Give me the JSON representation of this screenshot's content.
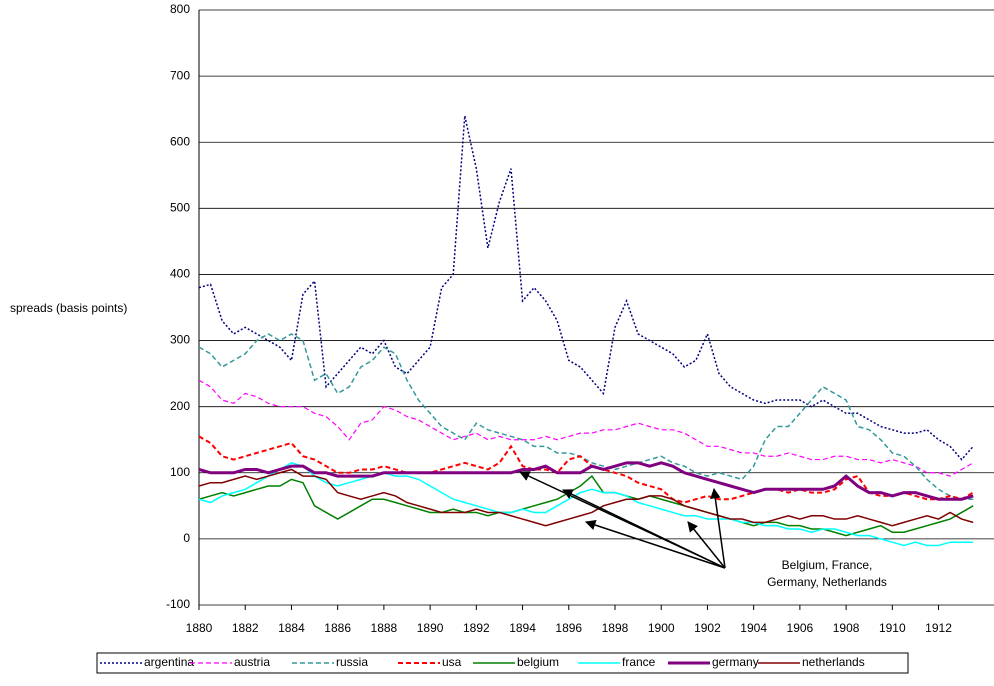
{
  "chart_data": {
    "type": "line",
    "y_label": "spreads (basis points)",
    "annotation": [
      "Belgium, France,",
      "Germany, Netherlands"
    ],
    "xlim": [
      1880,
      1914.4
    ],
    "xticks": [
      1880,
      1882,
      1884,
      1886,
      1888,
      1890,
      1892,
      1894,
      1896,
      1898,
      1900,
      1902,
      1904,
      1906,
      1908,
      1910,
      1912
    ],
    "ylim": [
      -100,
      800
    ],
    "yticks": [
      -100,
      0,
      100,
      200,
      300,
      400,
      500,
      600,
      700,
      800
    ],
    "grid": true,
    "legend": "bottom",
    "x": [
      1880,
      1880.5,
      1881,
      1881.5,
      1882,
      1882.5,
      1883,
      1883.5,
      1884,
      1884.5,
      1885,
      1885.5,
      1886,
      1886.5,
      1887,
      1887.5,
      1888,
      1888.5,
      1889,
      1889.5,
      1890,
      1890.5,
      1891,
      1891.5,
      1892,
      1892.5,
      1893,
      1893.5,
      1894,
      1894.5,
      1895,
      1895.5,
      1896,
      1896.5,
      1897,
      1897.5,
      1898,
      1898.5,
      1899,
      1899.5,
      1900,
      1900.5,
      1901,
      1901.5,
      1902,
      1902.5,
      1903,
      1903.5,
      1904,
      1904.5,
      1905,
      1905.5,
      1906,
      1906.5,
      1907,
      1907.5,
      1908,
      1908.5,
      1909,
      1909.5,
      1910,
      1910.5,
      1911,
      1911.5,
      1912,
      1912.5,
      1913,
      1913.5
    ],
    "series": [
      {
        "name": "argentina",
        "color": "#000080",
        "style": "dotted",
        "width": 1.5,
        "values": [
          380,
          385,
          330,
          310,
          320,
          310,
          300,
          290,
          270,
          370,
          390,
          230,
          250,
          270,
          290,
          280,
          300,
          260,
          250,
          270,
          290,
          380,
          400,
          640,
          560,
          440,
          510,
          560,
          360,
          380,
          360,
          330,
          270,
          260,
          240,
          220,
          320,
          360,
          310,
          300,
          290,
          280,
          260,
          270,
          310,
          250,
          230,
          220,
          210,
          205,
          210,
          210,
          210,
          200,
          210,
          200,
          190,
          190,
          180,
          170,
          165,
          160,
          160,
          165,
          150,
          140,
          120,
          140
        ]
      },
      {
        "name": "austria",
        "color": "#ff00ff",
        "style": "dashed",
        "width": 1.2,
        "values": [
          240,
          230,
          210,
          205,
          220,
          215,
          205,
          200,
          200,
          200,
          190,
          185,
          170,
          150,
          175,
          180,
          200,
          195,
          185,
          180,
          170,
          160,
          150,
          155,
          160,
          150,
          155,
          150,
          150,
          150,
          155,
          150,
          155,
          160,
          160,
          165,
          165,
          170,
          175,
          170,
          165,
          165,
          160,
          150,
          140,
          140,
          135,
          130,
          130,
          125,
          125,
          130,
          125,
          120,
          120,
          125,
          125,
          120,
          120,
          115,
          120,
          115,
          110,
          100,
          100,
          95,
          105,
          115
        ]
      },
      {
        "name": "russia",
        "color": "#339999",
        "style": "dashed",
        "width": 1.5,
        "values": [
          290,
          280,
          260,
          270,
          280,
          300,
          310,
          300,
          310,
          300,
          240,
          250,
          220,
          230,
          260,
          270,
          290,
          280,
          240,
          210,
          190,
          170,
          160,
          150,
          175,
          165,
          160,
          155,
          150,
          140,
          140,
          130,
          130,
          125,
          115,
          110,
          105,
          110,
          115,
          120,
          125,
          115,
          110,
          100,
          95,
          100,
          95,
          90,
          110,
          150,
          170,
          170,
          190,
          210,
          230,
          220,
          210,
          170,
          165,
          150,
          130,
          125,
          110,
          90,
          75,
          65,
          60,
          60
        ]
      },
      {
        "name": "usa",
        "color": "#ff0000",
        "style": "dashed",
        "width": 2,
        "values": [
          155,
          145,
          125,
          120,
          125,
          130,
          135,
          140,
          145,
          125,
          120,
          110,
          100,
          100,
          105,
          105,
          110,
          105,
          100,
          100,
          100,
          105,
          110,
          115,
          110,
          105,
          115,
          140,
          110,
          105,
          105,
          100,
          120,
          125,
          110,
          105,
          100,
          95,
          85,
          80,
          75,
          60,
          55,
          60,
          65,
          60,
          60,
          65,
          70,
          75,
          75,
          70,
          75,
          70,
          70,
          75,
          90,
          95,
          70,
          65,
          65,
          70,
          65,
          60,
          60,
          65,
          60,
          70
        ]
      },
      {
        "name": "belgium",
        "color": "#008000",
        "style": "solid",
        "width": 1.5,
        "values": [
          60,
          65,
          70,
          65,
          70,
          75,
          80,
          80,
          90,
          85,
          50,
          40,
          30,
          40,
          50,
          60,
          60,
          55,
          50,
          45,
          40,
          40,
          45,
          40,
          40,
          35,
          40,
          40,
          45,
          50,
          55,
          60,
          70,
          80,
          95,
          70,
          70,
          65,
          60,
          65,
          60,
          55,
          50,
          45,
          40,
          35,
          30,
          25,
          20,
          25,
          25,
          20,
          20,
          15,
          15,
          10,
          5,
          10,
          15,
          20,
          10,
          10,
          15,
          20,
          25,
          30,
          40,
          50
        ]
      },
      {
        "name": "france",
        "color": "#00ffff",
        "style": "solid",
        "width": 1.5,
        "values": [
          60,
          55,
          65,
          70,
          75,
          85,
          95,
          105,
          115,
          110,
          95,
          85,
          80,
          85,
          90,
          95,
          100,
          95,
          95,
          90,
          80,
          70,
          60,
          55,
          50,
          45,
          40,
          40,
          45,
          40,
          40,
          50,
          60,
          70,
          75,
          70,
          70,
          65,
          55,
          50,
          45,
          40,
          35,
          35,
          30,
          30,
          30,
          25,
          25,
          20,
          20,
          15,
          15,
          10,
          15,
          15,
          10,
          5,
          5,
          0,
          -5,
          -10,
          -5,
          -10,
          -10,
          -5,
          -5,
          -5
        ]
      },
      {
        "name": "germany",
        "color": "#800080",
        "style": "solid",
        "width": 3,
        "values": [
          105,
          100,
          100,
          100,
          105,
          105,
          100,
          105,
          110,
          110,
          100,
          100,
          95,
          95,
          95,
          95,
          100,
          100,
          100,
          100,
          100,
          100,
          100,
          100,
          100,
          100,
          100,
          100,
          105,
          105,
          110,
          100,
          100,
          100,
          110,
          105,
          110,
          115,
          115,
          110,
          115,
          110,
          100,
          95,
          90,
          85,
          80,
          75,
          70,
          75,
          75,
          75,
          75,
          75,
          75,
          80,
          95,
          80,
          70,
          70,
          65,
          70,
          70,
          65,
          60,
          60,
          60,
          65
        ]
      },
      {
        "name": "netherlands",
        "color": "#800000",
        "style": "solid",
        "width": 1.5,
        "values": [
          80,
          85,
          85,
          90,
          95,
          90,
          95,
          100,
          105,
          95,
          95,
          90,
          70,
          65,
          60,
          65,
          70,
          65,
          55,
          50,
          45,
          40,
          40,
          40,
          45,
          40,
          40,
          35,
          30,
          25,
          20,
          25,
          30,
          35,
          40,
          50,
          55,
          60,
          60,
          65,
          65,
          60,
          50,
          45,
          40,
          35,
          30,
          30,
          25,
          25,
          30,
          35,
          30,
          35,
          35,
          30,
          30,
          35,
          30,
          25,
          20,
          25,
          30,
          35,
          30,
          40,
          30,
          25
        ]
      }
    ]
  }
}
